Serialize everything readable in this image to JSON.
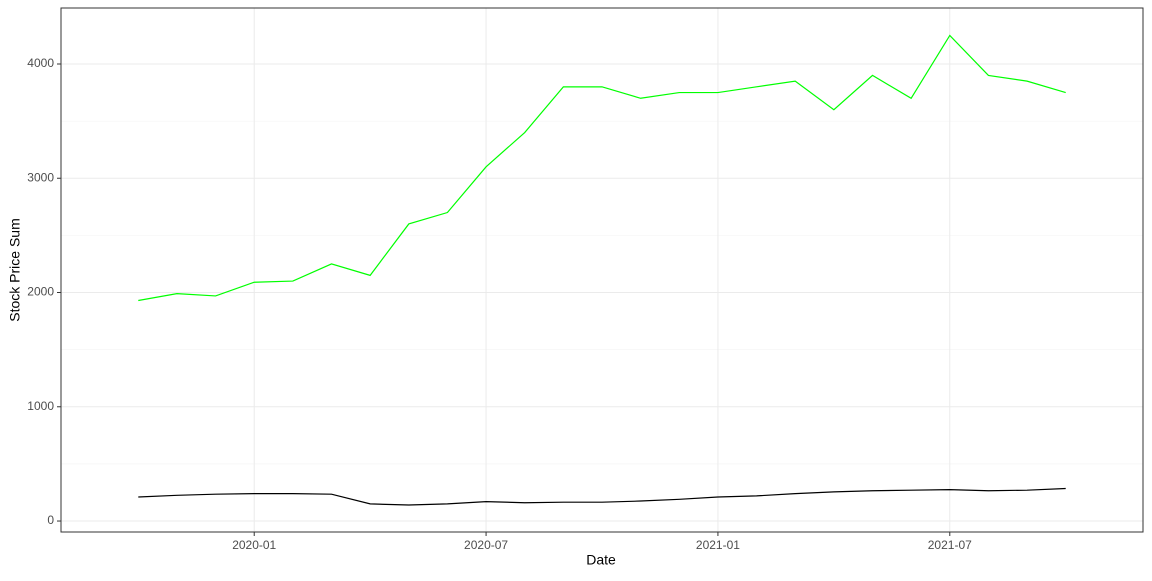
{
  "chart_data": {
    "type": "line",
    "x_label": "Date",
    "y_label": "Stock Price Sum",
    "x": [
      "2019-10",
      "2019-11",
      "2019-12",
      "2020-01",
      "2020-02",
      "2020-03",
      "2020-04",
      "2020-05",
      "2020-06",
      "2020-07",
      "2020-08",
      "2020-09",
      "2020-10",
      "2020-11",
      "2020-12",
      "2021-01",
      "2021-02",
      "2021-03",
      "2021-04",
      "2021-05",
      "2021-06",
      "2021-07",
      "2021-08",
      "2021-09",
      "2021-10"
    ],
    "series": [
      {
        "color": "#00ff00",
        "values": [
          1930,
          1990,
          1970,
          2090,
          2100,
          2250,
          2150,
          2600,
          2700,
          3100,
          3400,
          3800,
          3800,
          3700,
          3750,
          3750,
          3800,
          3850,
          3600,
          3900,
          3700,
          4250,
          3900,
          3850,
          3750
        ]
      },
      {
        "color": "#000000",
        "values": [
          210,
          225,
          235,
          240,
          240,
          235,
          150,
          140,
          150,
          170,
          160,
          165,
          165,
          175,
          190,
          210,
          220,
          240,
          255,
          265,
          270,
          275,
          265,
          270,
          285
        ]
      }
    ],
    "xlim": [
      "2019-08",
      "2021-12"
    ],
    "xticks": [
      "2020-01",
      "2020-07",
      "2021-01",
      "2021-07"
    ],
    "ylim": [
      -96,
      4490
    ],
    "yticks": [
      0,
      1000,
      2000,
      3000,
      4000
    ],
    "grid": true
  }
}
